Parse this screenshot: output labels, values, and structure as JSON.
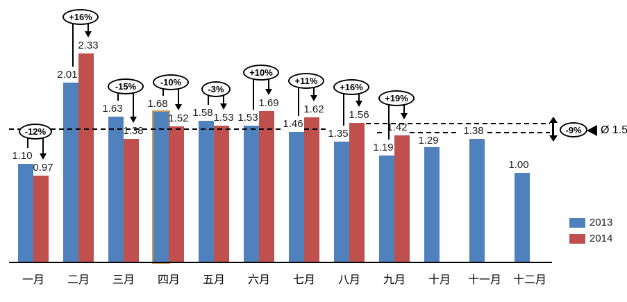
{
  "chart_data": {
    "type": "bar",
    "title": "",
    "xlabel": "",
    "ylabel": "",
    "categories": [
      "一月",
      "二月",
      "三月",
      "四月",
      "五月",
      "六月",
      "七月",
      "八月",
      "九月",
      "十月",
      "十一月",
      "十二月"
    ],
    "series": [
      {
        "name": "2013",
        "color": "#4F81BD",
        "values": [
          1.1,
          2.01,
          1.63,
          1.68,
          1.58,
          1.53,
          1.46,
          1.35,
          1.19,
          1.29,
          1.38,
          1.0
        ]
      },
      {
        "name": "2014",
        "color": "#C0504D",
        "values": [
          0.97,
          2.33,
          1.38,
          1.52,
          1.53,
          1.69,
          1.62,
          1.56,
          1.42,
          null,
          null,
          null
        ]
      }
    ],
    "change_labels": [
      "-12%",
      "+16%",
      "-15%",
      "-10%",
      "-3%",
      "+10%",
      "+11%",
      "+16%",
      "+19%",
      null,
      null,
      null
    ],
    "average": {
      "label": "Ø 1.5",
      "value": 1.5
    },
    "gap_annotation": {
      "label": "-9%",
      "upper_value": 1.56,
      "lower_value": 1.42
    },
    "highlighted_bar": {
      "series": "2013",
      "category": "四月"
    },
    "ylim": [
      0,
      2.6
    ],
    "grid": false,
    "legend_position": "right",
    "value_label_format": "0.00"
  }
}
